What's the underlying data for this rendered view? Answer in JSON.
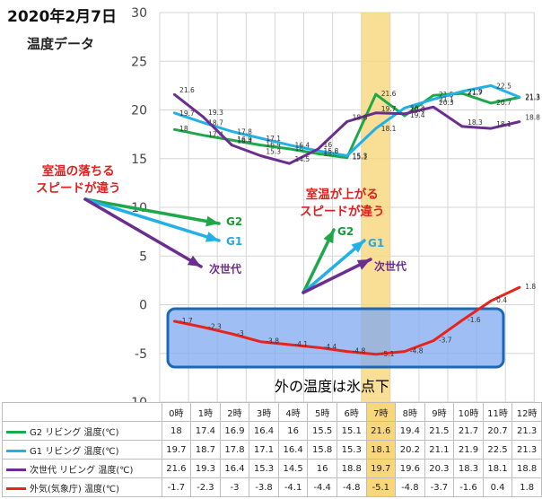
{
  "title": "2020年2月7日",
  "subtitle": "温度データ",
  "colors": {
    "G2": "#1fa84a",
    "G1": "#22b0e6",
    "next": "#6b2d90",
    "outdoor": "#e8231c",
    "highlight": "#f8d67a",
    "box_fill": "#7fa8f0",
    "box_stroke": "#1a68b8"
  },
  "annotations": {
    "left_text": [
      "室温の落ちる",
      "スピードが違う"
    ],
    "right_text": [
      "室温が上がる",
      "スピードが違う"
    ],
    "left_labels": {
      "g2": "G2",
      "g1": "G1",
      "next": "次世代"
    },
    "right_labels": {
      "g2": "G2",
      "g1": "G1",
      "next": "次世代"
    },
    "below_zero": "外の温度は氷点下"
  },
  "chart_data": {
    "type": "line",
    "title": "2020年2月7日",
    "subtitle": "温度データ",
    "categories": [
      "0時",
      "1時",
      "2時",
      "3時",
      "4時",
      "5時",
      "6時",
      "7時",
      "8時",
      "9時",
      "10時",
      "11時",
      "12時"
    ],
    "highlight_category": "7時",
    "ylim": [
      -10,
      30
    ],
    "yticks": [
      -10,
      -5,
      0,
      5,
      10,
      15,
      20,
      25,
      30
    ],
    "grid": true,
    "legend": "table-below",
    "series": [
      {
        "name": "G2 リビング 温度(℃)",
        "key": "G2",
        "values": [
          18,
          17.4,
          16.9,
          16.4,
          16,
          15.5,
          15.1,
          21.6,
          19.4,
          21.5,
          21.7,
          20.7,
          21.3
        ],
        "labels": [
          "18",
          "17.4",
          "16.9",
          "16.4",
          "16",
          "15.5",
          "15.1",
          "21.6",
          "19.4",
          "21.5",
          "21.7",
          "20.7",
          "21.3"
        ]
      },
      {
        "name": "G1 リビング 温度(℃)",
        "key": "G1",
        "values": [
          19.7,
          18.7,
          17.8,
          17.1,
          16.4,
          15.8,
          15.3,
          18.1,
          20.2,
          21.1,
          21.9,
          22.5,
          21.3
        ],
        "labels": [
          "19.7",
          "18.7",
          "17.8",
          "17.1",
          "16.4",
          "15.8",
          "15.3",
          "18.1",
          "20.2",
          "21.1",
          "21.9",
          "22.5",
          "21.3"
        ]
      },
      {
        "name": "次世代 リビング 温度(℃)",
        "key": "next",
        "values": [
          21.6,
          19.3,
          16.4,
          15.3,
          14.5,
          16,
          18.8,
          19.7,
          19.6,
          20.3,
          18.3,
          18.1,
          18.8
        ],
        "labels": [
          "21.6",
          "19.3",
          "16.4",
          "15.3",
          "14.5",
          "16",
          "18.8",
          "19.7",
          "19.6",
          "20.3",
          "18.3",
          "18.1",
          "18.8"
        ]
      },
      {
        "name": "外気(気象庁) 温度(℃)",
        "key": "outdoor",
        "values": [
          -1.7,
          -2.3,
          -3,
          -3.8,
          -4.1,
          -4.4,
          -4.8,
          -5.1,
          -4.8,
          -3.7,
          -1.6,
          0.4,
          1.8
        ],
        "labels": [
          "-1.7",
          "-2.3",
          "-3",
          "-3.8",
          "-4.1",
          "-4.4",
          "-4.8",
          "-5.1",
          "-4.8",
          "-3.7",
          "-1.6",
          "0.4",
          "1.8"
        ]
      }
    ]
  }
}
